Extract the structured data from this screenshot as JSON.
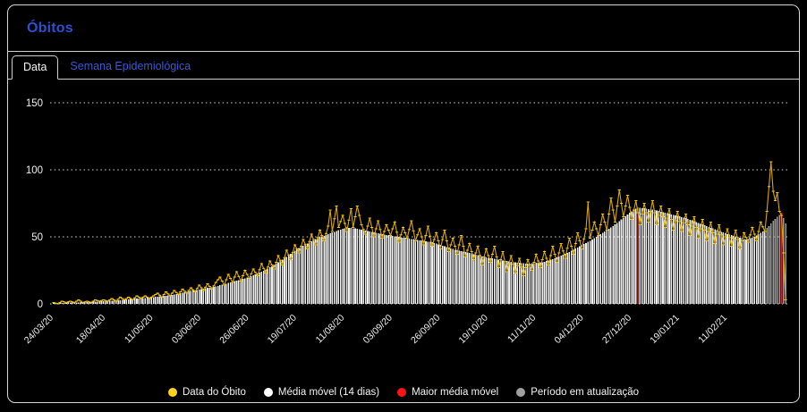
{
  "window": {
    "background": "#000000",
    "card_border": "#d6d6d6"
  },
  "header": {
    "title": "Óbitos",
    "title_color": "#2d4fd3"
  },
  "tabs": [
    {
      "label": "Data",
      "active": true
    },
    {
      "label": "Semana Epidemiológica",
      "active": false,
      "color": "#3a57d8"
    }
  ],
  "legend": {
    "items": [
      {
        "label": "Data do Óbito",
        "color": "#ffd21e"
      },
      {
        "label": "Média móvel (14 dias)",
        "color": "#ffffff"
      },
      {
        "label": "Maior média móvel",
        "color": "#ff1313"
      },
      {
        "label": "Período em atualização",
        "color": "#a0a0a0"
      }
    ]
  },
  "chart_data": {
    "type": "bar",
    "title": "Óbitos por data",
    "xlabel": "",
    "ylabel": "",
    "ylim": [
      0,
      150
    ],
    "yticks": [
      0,
      50,
      100,
      150
    ],
    "grid": "dotted-horizontal",
    "num_days": 353,
    "start_label": "24/03/20",
    "xticks": [
      {
        "i": 0,
        "label": "24/03/20"
      },
      {
        "i": 25,
        "label": "18/04/20"
      },
      {
        "i": 48,
        "label": "11/05/20"
      },
      {
        "i": 71,
        "label": "03/06/20"
      },
      {
        "i": 94,
        "label": "26/06/20"
      },
      {
        "i": 117,
        "label": "19/07/20"
      },
      {
        "i": 140,
        "label": "11/08/20"
      },
      {
        "i": 163,
        "label": "03/09/20"
      },
      {
        "i": 186,
        "label": "26/09/20"
      },
      {
        "i": 209,
        "label": "19/10/20"
      },
      {
        "i": 232,
        "label": "11/11/20"
      },
      {
        "i": 255,
        "label": "04/12/20"
      },
      {
        "i": 278,
        "label": "27/12/20"
      },
      {
        "i": 301,
        "label": "19/01/21"
      },
      {
        "i": 324,
        "label": "11/02/21"
      }
    ],
    "series": [
      {
        "name": "Média móvel (14 dias)",
        "style": "bar",
        "color": "#f2f2f2",
        "sampled": true,
        "points": [
          [
            0,
            0.6
          ],
          [
            10,
            1
          ],
          [
            20,
            1.6
          ],
          [
            30,
            2.5
          ],
          [
            40,
            4
          ],
          [
            48,
            5
          ],
          [
            56,
            6.5
          ],
          [
            64,
            9
          ],
          [
            71,
            11
          ],
          [
            78,
            13
          ],
          [
            85,
            16
          ],
          [
            94,
            20
          ],
          [
            100,
            24
          ],
          [
            106,
            29
          ],
          [
            112,
            35
          ],
          [
            117,
            41
          ],
          [
            122,
            45
          ],
          [
            127,
            49
          ],
          [
            132,
            52
          ],
          [
            137,
            55
          ],
          [
            141,
            57
          ],
          [
            146,
            56
          ],
          [
            152,
            54
          ],
          [
            158,
            52
          ],
          [
            166,
            50
          ],
          [
            174,
            48
          ],
          [
            182,
            46
          ],
          [
            188,
            43
          ],
          [
            194,
            40
          ],
          [
            200,
            38
          ],
          [
            207,
            35
          ],
          [
            214,
            33
          ],
          [
            221,
            31
          ],
          [
            228,
            30
          ],
          [
            235,
            31
          ],
          [
            241,
            34
          ],
          [
            247,
            38
          ],
          [
            253,
            43
          ],
          [
            259,
            48
          ],
          [
            264,
            53
          ],
          [
            269,
            58
          ],
          [
            273,
            63
          ],
          [
            277,
            68
          ],
          [
            281,
            72
          ],
          [
            285,
            71
          ],
          [
            289,
            70
          ],
          [
            294,
            68
          ],
          [
            299,
            66
          ],
          [
            304,
            64
          ],
          [
            309,
            61
          ],
          [
            314,
            58
          ],
          [
            319,
            55
          ],
          [
            324,
            52
          ],
          [
            329,
            50
          ],
          [
            333,
            48
          ],
          [
            337,
            50
          ],
          [
            341,
            54
          ],
          [
            344,
            58
          ],
          [
            346,
            62
          ],
          [
            348,
            65
          ],
          [
            350,
            68
          ],
          [
            351,
            64
          ],
          [
            352,
            60
          ]
        ]
      },
      {
        "name": "Data do Óbito",
        "style": "line",
        "color": "#d9a600",
        "marker_color": "#f7c600",
        "sampled": true,
        "points": [
          [
            0,
            1
          ],
          [
            2,
            0
          ],
          [
            4,
            2
          ],
          [
            6,
            1
          ],
          [
            8,
            2
          ],
          [
            10,
            1
          ],
          [
            12,
            3
          ],
          [
            14,
            1
          ],
          [
            16,
            2
          ],
          [
            18,
            1
          ],
          [
            20,
            3
          ],
          [
            22,
            2
          ],
          [
            24,
            3
          ],
          [
            26,
            2
          ],
          [
            28,
            4
          ],
          [
            30,
            2
          ],
          [
            32,
            5
          ],
          [
            34,
            3
          ],
          [
            36,
            5
          ],
          [
            38,
            3
          ],
          [
            40,
            6
          ],
          [
            42,
            4
          ],
          [
            44,
            6
          ],
          [
            46,
            4
          ],
          [
            48,
            6
          ],
          [
            50,
            8
          ],
          [
            52,
            5
          ],
          [
            54,
            9
          ],
          [
            56,
            6
          ],
          [
            58,
            10
          ],
          [
            60,
            7
          ],
          [
            62,
            11
          ],
          [
            64,
            8
          ],
          [
            66,
            12
          ],
          [
            68,
            9
          ],
          [
            70,
            14
          ],
          [
            72,
            10
          ],
          [
            74,
            15
          ],
          [
            76,
            11
          ],
          [
            78,
            16
          ],
          [
            80,
            20
          ],
          [
            82,
            14
          ],
          [
            84,
            22
          ],
          [
            86,
            16
          ],
          [
            88,
            24
          ],
          [
            90,
            17
          ],
          [
            92,
            25
          ],
          [
            94,
            19
          ],
          [
            96,
            26
          ],
          [
            98,
            21
          ],
          [
            100,
            30
          ],
          [
            102,
            23
          ],
          [
            104,
            32
          ],
          [
            106,
            26
          ],
          [
            108,
            36
          ],
          [
            110,
            29
          ],
          [
            112,
            40
          ],
          [
            114,
            33
          ],
          [
            116,
            44
          ],
          [
            118,
            38
          ],
          [
            120,
            48
          ],
          [
            122,
            41
          ],
          [
            124,
            52
          ],
          [
            126,
            44
          ],
          [
            128,
            55
          ],
          [
            130,
            47
          ],
          [
            132,
            58
          ],
          [
            133,
            70
          ],
          [
            134,
            54
          ],
          [
            136,
            73
          ],
          [
            137,
            57
          ],
          [
            139,
            66
          ],
          [
            141,
            54
          ],
          [
            143,
            71
          ],
          [
            144,
            57
          ],
          [
            146,
            73
          ],
          [
            148,
            59
          ],
          [
            150,
            52
          ],
          [
            152,
            64
          ],
          [
            154,
            50
          ],
          [
            156,
            62
          ],
          [
            158,
            49
          ],
          [
            160,
            59
          ],
          [
            162,
            51
          ],
          [
            164,
            61
          ],
          [
            166,
            46
          ],
          [
            168,
            57
          ],
          [
            170,
            49
          ],
          [
            172,
            62
          ],
          [
            174,
            47
          ],
          [
            176,
            56
          ],
          [
            178,
            44
          ],
          [
            180,
            58
          ],
          [
            182,
            43
          ],
          [
            184,
            53
          ],
          [
            186,
            41
          ],
          [
            188,
            55
          ],
          [
            190,
            39
          ],
          [
            192,
            49
          ],
          [
            194,
            37
          ],
          [
            196,
            51
          ],
          [
            198,
            35
          ],
          [
            200,
            45
          ],
          [
            202,
            33
          ],
          [
            204,
            43
          ],
          [
            206,
            29
          ],
          [
            208,
            41
          ],
          [
            210,
            31
          ],
          [
            212,
            43
          ],
          [
            214,
            27
          ],
          [
            216,
            39
          ],
          [
            218,
            24
          ],
          [
            220,
            36
          ],
          [
            222,
            23
          ],
          [
            224,
            34
          ],
          [
            226,
            21
          ],
          [
            228,
            33
          ],
          [
            230,
            25
          ],
          [
            232,
            37
          ],
          [
            234,
            27
          ],
          [
            236,
            39
          ],
          [
            238,
            29
          ],
          [
            240,
            43
          ],
          [
            242,
            31
          ],
          [
            244,
            45
          ],
          [
            246,
            34
          ],
          [
            248,
            49
          ],
          [
            250,
            37
          ],
          [
            252,
            53
          ],
          [
            254,
            41
          ],
          [
            256,
            56
          ],
          [
            257,
            76
          ],
          [
            258,
            49
          ],
          [
            260,
            61
          ],
          [
            262,
            51
          ],
          [
            264,
            67
          ],
          [
            266,
            55
          ],
          [
            268,
            79
          ],
          [
            270,
            61
          ],
          [
            272,
            85
          ],
          [
            274,
            65
          ],
          [
            276,
            81
          ],
          [
            278,
            63
          ],
          [
            280,
            77
          ],
          [
            282,
            59
          ],
          [
            284,
            75
          ],
          [
            286,
            61
          ],
          [
            288,
            77
          ],
          [
            290,
            59
          ],
          [
            292,
            73
          ],
          [
            294,
            57
          ],
          [
            296,
            71
          ],
          [
            298,
            55
          ],
          [
            300,
            69
          ],
          [
            302,
            54
          ],
          [
            304,
            67
          ],
          [
            306,
            51
          ],
          [
            308,
            65
          ],
          [
            310,
            49
          ],
          [
            312,
            63
          ],
          [
            314,
            47
          ],
          [
            316,
            61
          ],
          [
            318,
            45
          ],
          [
            320,
            59
          ],
          [
            322,
            44
          ],
          [
            324,
            56
          ],
          [
            326,
            43
          ],
          [
            328,
            55
          ],
          [
            330,
            41
          ],
          [
            332,
            53
          ],
          [
            334,
            46
          ],
          [
            336,
            57
          ],
          [
            338,
            47
          ],
          [
            340,
            61
          ],
          [
            342,
            54
          ],
          [
            343,
            69
          ],
          [
            345,
            106
          ],
          [
            346,
            84
          ],
          [
            347,
            77
          ],
          [
            348,
            83
          ],
          [
            349,
            69
          ],
          [
            350,
            66
          ],
          [
            351,
            38
          ],
          [
            352,
            3
          ]
        ]
      }
    ],
    "highlights": {
      "red_bar_indices": [
        281,
        350
      ],
      "red_color": "#f01420",
      "updating_from_index": 343,
      "updating_color": "#9a9a9a"
    },
    "axis_text_color": "#efefef",
    "grid_color": "#d8d8d8"
  }
}
